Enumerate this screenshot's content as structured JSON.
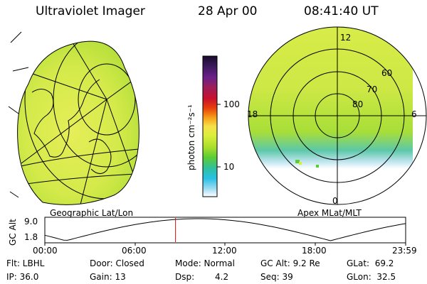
{
  "header": {
    "title": "Ultraviolet Imager",
    "date": "28 Apr 00",
    "time": "08:41:40 UT"
  },
  "colorbar": {
    "unit_label": "photon cm⁻²s⁻¹",
    "ticks": [
      "100",
      "10"
    ],
    "stops": [
      "#1a0a2a",
      "#3a1a5a",
      "#6a1f8a",
      "#9a1f5a",
      "#c8102e",
      "#e8400c",
      "#f6a21a",
      "#f8e04a",
      "#d8ee3c",
      "#a8de2c",
      "#5ccc34",
      "#2ec0a0",
      "#28c0e6",
      "#9adaf0",
      "#ffffff"
    ]
  },
  "left_panel": {
    "caption": "Geographic Lat/Lon"
  },
  "right_panel": {
    "caption": "Apex MLat/MLT",
    "mlt_labels": {
      "top": "12",
      "left": "18",
      "right": "6",
      "bottom": "0"
    },
    "lat_labels": [
      "60",
      "70",
      "80"
    ]
  },
  "altitude_plot": {
    "ylabel": "GC Alt",
    "ytick_top": "9.0",
    "ytick_bottom": "1.8",
    "x_ticks": [
      "00:00",
      "06:00",
      "12:00",
      "18:00",
      "23:59"
    ],
    "marker_time_h": 8.69
  },
  "status": {
    "flt": "Flt: LBHL",
    "ip": "IP: 36.0",
    "door": "Door: Closed",
    "gain": "Gain: 13",
    "mode": "Mode: Normal",
    "dsp_label": "Dsp:",
    "dsp_value": "4.2",
    "gc_alt": "GC Alt: 9.2 Re",
    "seq": "Seq: 39",
    "glat": "GLat:  69.2",
    "glon": "GLon:  32.5"
  }
}
